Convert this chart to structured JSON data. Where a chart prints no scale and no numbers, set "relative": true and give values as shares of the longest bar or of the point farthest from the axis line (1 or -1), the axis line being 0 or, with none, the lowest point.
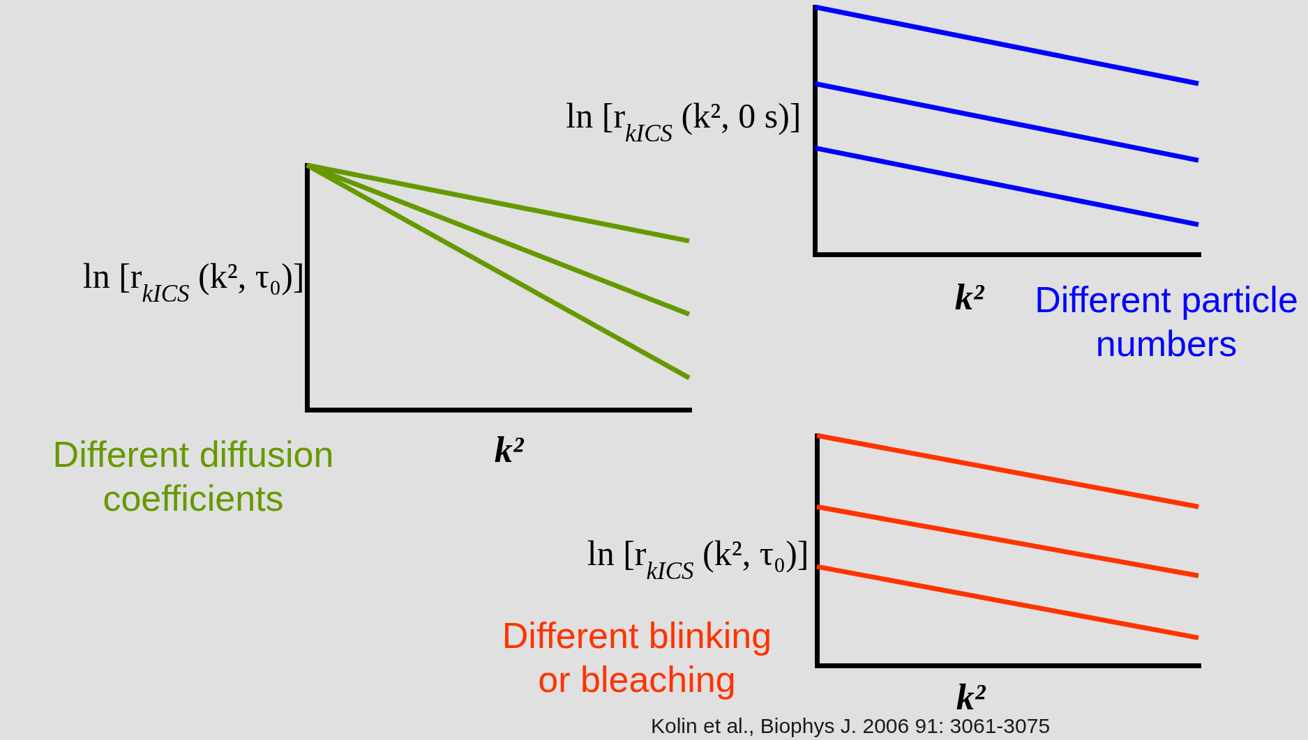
{
  "chart_data": [
    {
      "type": "line",
      "title": "Different diffusion\ncoefficients",
      "xlabel": "k²",
      "ylabel": "ln [r$_{kICS}$ (k², τ₀)]",
      "relative": true,
      "categories": [
        null,
        null
      ],
      "series": [
        {
          "color": "#669900",
          "values": [
            1,
            0.69
          ]
        },
        {
          "color": "#669900",
          "values": [
            1,
            0.39
          ]
        },
        {
          "color": "#669900",
          "values": [
            1,
            0.13
          ]
        }
      ]
    },
    {
      "type": "line",
      "title": "Different particle\nnumbers",
      "xlabel": "k²",
      "ylabel": "ln [r$_{kICS}$ (k², 0 s)]",
      "relative": true,
      "categories": [
        null,
        null
      ],
      "series": [
        {
          "color": "#0000ff",
          "values": [
            1,
            0.69
          ]
        },
        {
          "color": "#0000ff",
          "values": [
            0.69,
            0.38
          ]
        },
        {
          "color": "#0000ff",
          "values": [
            0.43,
            0.12
          ]
        }
      ]
    },
    {
      "type": "line",
      "title": "Different blinking\nor bleaching",
      "xlabel": "k²",
      "ylabel": "ln [r$_{kICS}$ (k², τ₀)]",
      "relative": true,
      "categories": [
        null,
        null
      ],
      "series": [
        {
          "color": "#ff3300",
          "values": [
            1,
            0.69
          ]
        },
        {
          "color": "#ff3300",
          "values": [
            0.69,
            0.39
          ]
        },
        {
          "color": "#ff3300",
          "values": [
            0.43,
            0.12
          ]
        }
      ],
      "annotations": [
        "Kolin et al., Biophys J. 2006 91: 3061-3075"
      ]
    }
  ]
}
